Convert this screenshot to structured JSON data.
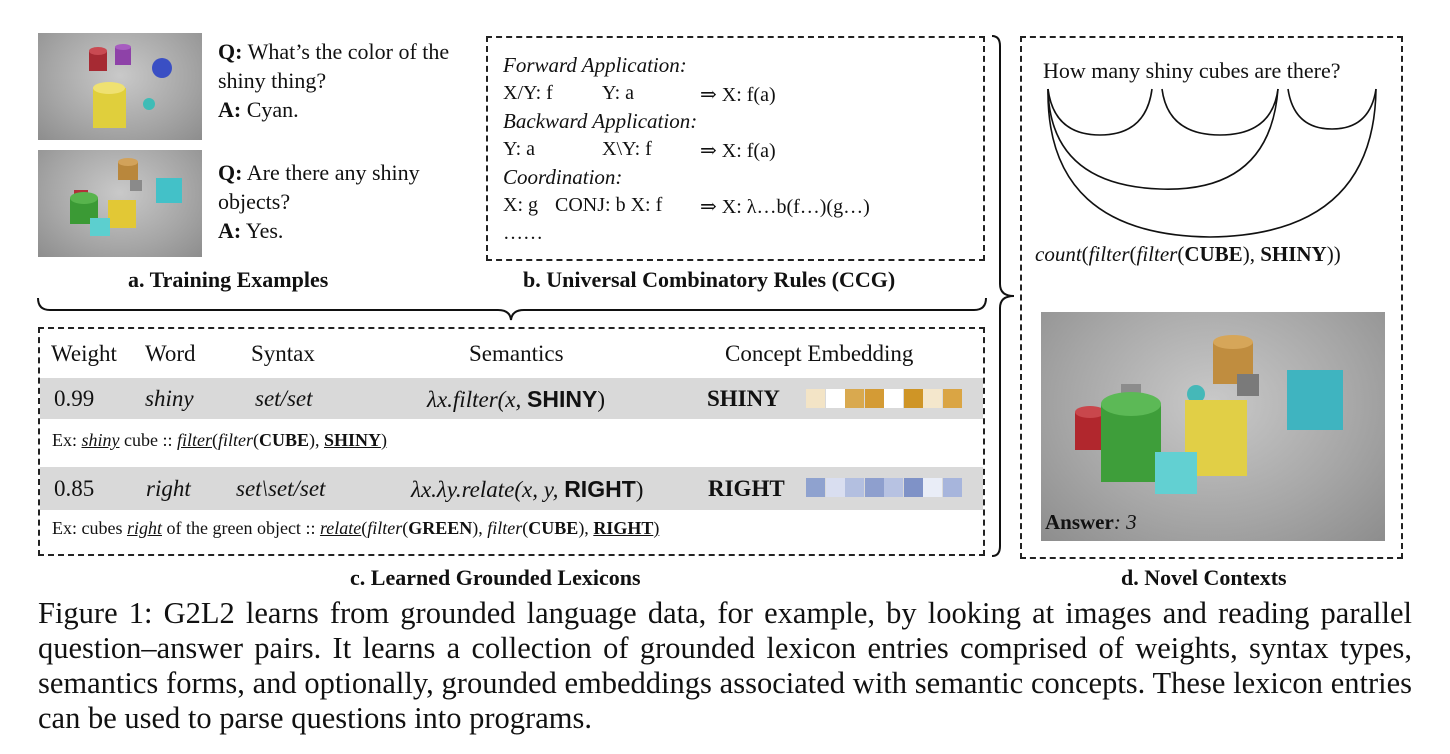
{
  "training": {
    "qa1": {
      "q_label": "Q:",
      "q_text": "What’s the color of the shiny thing?",
      "a_label": "A:",
      "a_text": "Cyan."
    },
    "qa2": {
      "q_label": "Q:",
      "q_text": "Are there any shiny objects?",
      "a_label": "A:",
      "a_text": "Yes."
    },
    "caption": "a. Training Examples"
  },
  "ccg": {
    "forward_title": "Forward Application:",
    "forward_rule": {
      "left": "X/Y: f",
      "mid": "Y: a",
      "result": "⇒  X: f(a)"
    },
    "backward_title": "Backward Application:",
    "backward_rule": {
      "left": "Y: a",
      "mid": "X\\Y: f",
      "result": "⇒  X: f(a)"
    },
    "coord_title": "Coordination:",
    "coord_rule": {
      "left": "X: g",
      "mid": "CONJ: b  X: f",
      "result": "⇒  X: λ…b(f…)(g…)"
    },
    "ellipsis": "……",
    "caption": "b. Universal Combinatory Rules (CCG)"
  },
  "lexicon": {
    "headers": [
      "Weight",
      "Word",
      "Syntax",
      "Semantics",
      "Concept Embedding"
    ],
    "rows": [
      {
        "weight": "0.99",
        "word": "shiny",
        "syntax": "set/set",
        "sem_prefix": "λx.filter(x, ",
        "sem_concept": "SHINY",
        "sem_suffix": ")",
        "concept": "SHINY",
        "ex_prefix": "Ex: ",
        "ex_word": "shiny",
        "ex_mid": " cube :: ",
        "ex_program_a": "filter",
        "ex_program_b": "(",
        "ex_program_c": "filter",
        "ex_program_d": "(",
        "ex_concept1": "CUBE",
        "ex_sep": "),  ",
        "ex_concept2": "SHINY",
        "ex_end": ")",
        "swatch_colors": [
          "#f3e4c6",
          "#ffffff",
          "#d9a94f",
          "#d49b35",
          "#ffffff",
          "#cf9526",
          "#f4e7cc",
          "#daa544"
        ]
      },
      {
        "weight": "0.85",
        "word": "right",
        "syntax": "set\\set/set",
        "sem_prefix": "λx.λy.relate(x, y, ",
        "sem_concept": "RIGHT",
        "sem_suffix": ")",
        "concept": "RIGHT",
        "ex_prefix": "Ex: cubes ",
        "ex_word": "right",
        "ex_mid": " of the green object :: ",
        "ex_program_a": "relate",
        "ex_program_b": "(",
        "ex_program_c": "filter",
        "ex_program_d": "(",
        "ex_concept1": "GREEN",
        "ex_sep": "),  ",
        "ex_filter2": "filter",
        "ex_concept_cube": "CUBE",
        "ex_sep2": "),  ",
        "ex_concept2": "RIGHT",
        "ex_end": ")",
        "swatch_colors": [
          "#8fa2cf",
          "#d9def0",
          "#b3bfe0",
          "#8e9fce",
          "#b7c2e2",
          "#7f92c7",
          "#e9edf7",
          "#a7b5dc"
        ]
      }
    ],
    "caption": "c. Learned Grounded Lexicons"
  },
  "novel": {
    "question": "How many shiny cubes are there?",
    "program_count": "count",
    "program_filter1": "filter",
    "program_filter2": "filter",
    "program_cube": "CUBE",
    "program_shiny": "SHINY",
    "answer_label": "Answer",
    "answer_value": ": 3",
    "caption": "d. Novel Contexts"
  },
  "figure_caption": "Figure 1: G2L2 learns from grounded language data, for example, by looking at images and reading parallel question–answer pairs. It learns a collection of grounded lexicon entries comprised of weights, syntax types, semantics forms, and optionally, grounded embeddings associated with semantic concepts. These lexicon entries can be used to parse questions into programs."
}
